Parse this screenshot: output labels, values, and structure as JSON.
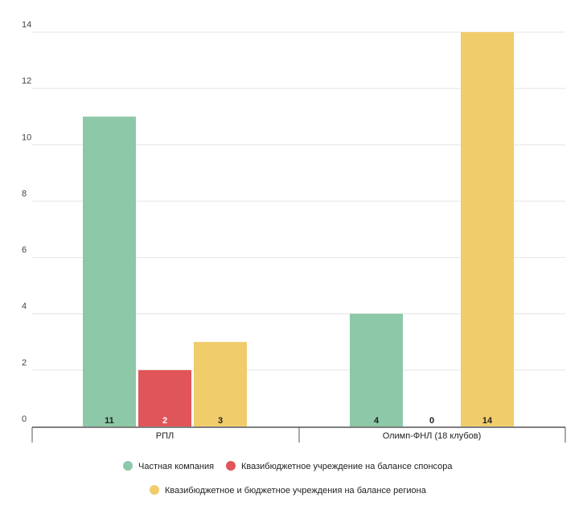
{
  "chart_data": {
    "type": "bar",
    "title": "",
    "xlabel": "",
    "ylabel": "",
    "categories": [
      "РПЛ",
      "Олимп-ФНЛ (18 клубов)"
    ],
    "series": [
      {
        "name": "Частная компания",
        "values": [
          11,
          4
        ],
        "color": "#8dc8a8",
        "label_color": "#222222"
      },
      {
        "name": "Квазибюджетное учреждение на балансе спонсора",
        "values": [
          2,
          0
        ],
        "color": "#e05559",
        "label_color": "#ffffff"
      },
      {
        "name": "Квазибюджетное и бюджетное учреждения на балансе региона",
        "values": [
          3,
          14
        ],
        "color": "#f0cc6b",
        "label_color": "#222222"
      }
    ],
    "ylim": [
      0,
      14
    ],
    "yticks": [
      0,
      2,
      4,
      6,
      8,
      10,
      12,
      14
    ],
    "grid": true,
    "legend_position": "bottom"
  }
}
